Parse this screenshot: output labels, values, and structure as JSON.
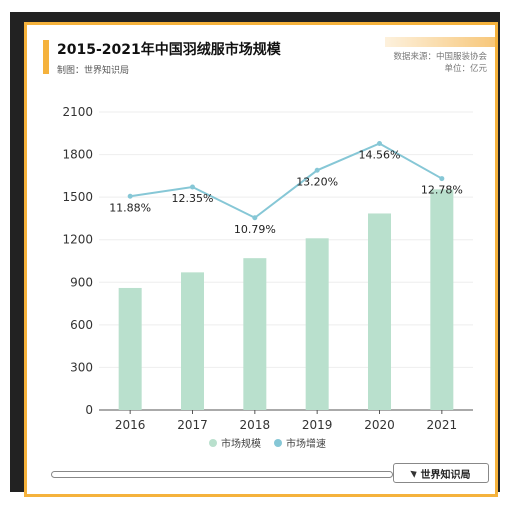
{
  "header": {
    "title": "2015-2021年中国羽绒服市场规模",
    "credit": "制图：世界知识局",
    "source_line1": "数据来源：中国服装协会",
    "source_line2": "单位：亿元"
  },
  "footer": {
    "brand": "世界知识局"
  },
  "colors": {
    "bar": "#b9e0cd",
    "line": "#86c7d6",
    "accent": "#f5b23c"
  },
  "chart_data": {
    "type": "bar",
    "title": "2015-2021年中国羽绒服市场规模",
    "categories": [
      "2016",
      "2017",
      "2018",
      "2019",
      "2020",
      "2021"
    ],
    "ylim": [
      0,
      2100
    ],
    "yticks": [
      "0",
      "300",
      "600",
      "900",
      "1200",
      "1500",
      "1800",
      "2100"
    ],
    "series": [
      {
        "name": "市场规模",
        "type": "bar",
        "values": [
          860,
          970,
          1070,
          1210,
          1385,
          1555
        ]
      },
      {
        "name": "市场增速",
        "type": "line",
        "values": [
          11.88,
          12.35,
          10.79,
          13.2,
          14.56,
          12.78
        ],
        "labels": [
          "11.88%",
          "12.35%",
          "10.79%",
          "13.20%",
          "14.56%",
          "12.78%"
        ]
      }
    ],
    "legend": "bottom",
    "grid": true
  }
}
